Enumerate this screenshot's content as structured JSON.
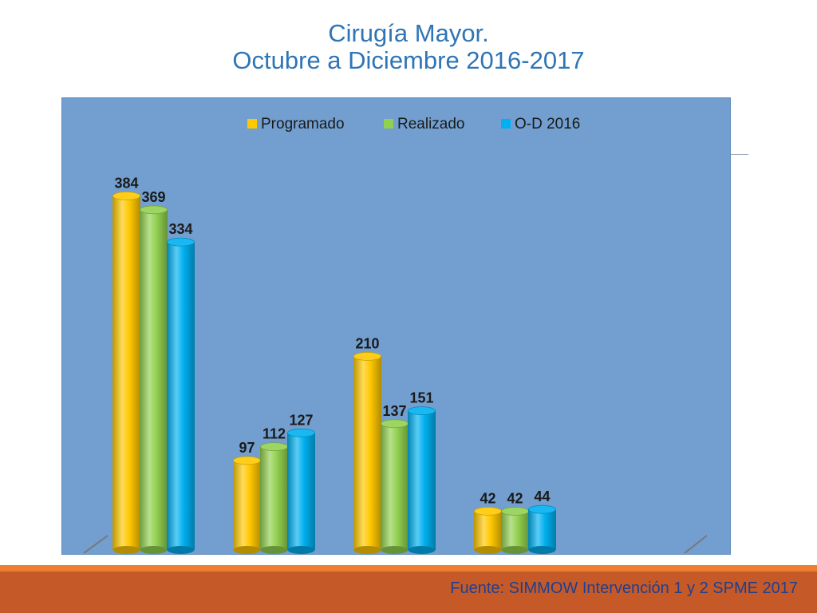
{
  "title": {
    "line1": "Cirugía Mayor.",
    "line2": "Octubre a Diciembre 2016-2017"
  },
  "source": "Fuente: SIMMOW Intervención 1 y 2  SPME 2017",
  "colors": {
    "background": "#729fcf",
    "title": "#2e75b6",
    "label": "#1a1a1a",
    "band_top": "#ed7d31",
    "band_bottom": "#c55a28",
    "source": "#1f3f8f"
  },
  "chart_data": {
    "type": "bar",
    "style": "3d-cylinder",
    "categories": [
      "",
      "",
      "",
      ""
    ],
    "ylim": [
      0,
      400
    ],
    "grid": false,
    "legend_position": "top",
    "series": [
      {
        "name": "Programado",
        "color": "#ffc800",
        "values": [
          384,
          97,
          210,
          42
        ]
      },
      {
        "name": "Realizado",
        "color": "#92d050",
        "values": [
          369,
          112,
          137,
          42
        ]
      },
      {
        "name": "O-D 2016",
        "color": "#00b0f0",
        "values": [
          334,
          127,
          151,
          44
        ]
      }
    ]
  }
}
